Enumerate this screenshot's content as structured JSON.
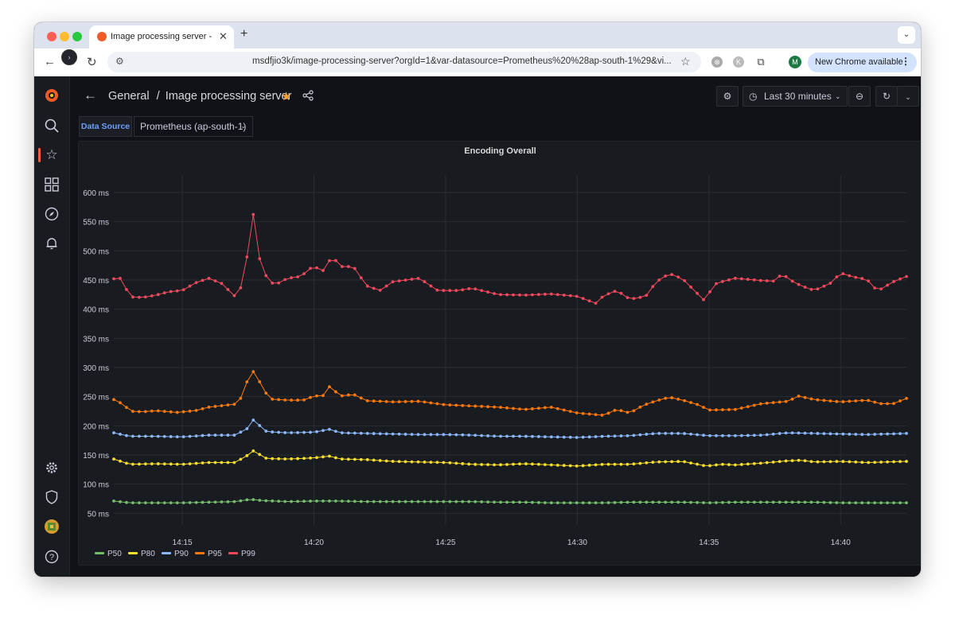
{
  "browser": {
    "tab_title": "Image processing server - Da",
    "url": "msdfjio3k/image-processing-server?orgId=1&var-datasource=Prometheus%20%28ap-south-1%29&vi...",
    "update_label": "New Chrome available",
    "profile_initial": "M",
    "extension_initial": "K"
  },
  "dashboard": {
    "breadcrumb_folder": "General",
    "breadcrumb_sep": "/",
    "title": "Image processing server",
    "time_range": "Last 30 minutes"
  },
  "variables": {
    "datasource_label": "Data Source",
    "datasource_value": "Prometheus (ap-south-1)"
  },
  "panel": {
    "title": "Encoding Overall"
  },
  "colors": {
    "P50": "#73bf69",
    "P80": "#fade2a",
    "P90": "#8ab8ff",
    "P95": "#ff780a",
    "P99": "#f2495c",
    "accent": "#f55f3e"
  },
  "chart_data": {
    "type": "line",
    "title": "Encoding Overall",
    "xlabel": "",
    "ylabel": "",
    "x_ticks": [
      "14:15",
      "14:20",
      "14:25",
      "14:30",
      "14:35",
      "14:40"
    ],
    "x_tick_minutes": [
      15,
      20,
      25,
      30,
      35,
      40
    ],
    "x_range_minutes": [
      12.4,
      42.5
    ],
    "y_ticks": [
      "50 ms",
      "100 ms",
      "150 ms",
      "200 ms",
      "250 ms",
      "300 ms",
      "350 ms",
      "400 ms",
      "450 ms",
      "500 ms",
      "550 ms",
      "600 ms"
    ],
    "y_tick_values": [
      50,
      100,
      150,
      200,
      250,
      300,
      350,
      400,
      450,
      500,
      550,
      600
    ],
    "ylim": [
      30,
      630
    ],
    "grid": true,
    "legend_position": "bottom-left",
    "series": [
      {
        "name": "P50",
        "knots": [
          [
            12.4,
            71
          ],
          [
            13,
            68
          ],
          [
            14,
            68
          ],
          [
            15,
            68
          ],
          [
            16,
            69
          ],
          [
            17,
            70
          ],
          [
            17.6,
            74
          ],
          [
            18,
            72
          ],
          [
            19,
            70
          ],
          [
            20,
            71
          ],
          [
            21,
            71
          ],
          [
            22,
            70
          ],
          [
            23,
            70
          ],
          [
            24,
            70
          ],
          [
            25,
            70
          ],
          [
            26,
            70
          ],
          [
            27,
            69
          ],
          [
            28,
            69
          ],
          [
            29,
            68
          ],
          [
            30,
            68
          ],
          [
            31,
            68
          ],
          [
            32,
            69
          ],
          [
            33,
            69
          ],
          [
            34,
            69
          ],
          [
            35,
            68
          ],
          [
            36,
            69
          ],
          [
            37,
            69
          ],
          [
            38,
            69
          ],
          [
            39,
            69
          ],
          [
            40,
            68
          ],
          [
            41,
            68
          ],
          [
            42.5,
            68
          ]
        ]
      },
      {
        "name": "P80",
        "knots": [
          [
            12.4,
            143
          ],
          [
            13,
            134
          ],
          [
            14,
            135
          ],
          [
            15,
            134
          ],
          [
            16,
            137
          ],
          [
            17,
            137
          ],
          [
            17.5,
            150
          ],
          [
            17.7,
            157
          ],
          [
            18.2,
            144
          ],
          [
            19,
            143
          ],
          [
            20,
            145
          ],
          [
            20.6,
            148
          ],
          [
            21,
            143
          ],
          [
            22,
            142
          ],
          [
            23,
            139
          ],
          [
            24,
            138
          ],
          [
            25,
            137
          ],
          [
            26,
            134
          ],
          [
            27,
            133
          ],
          [
            28,
            135
          ],
          [
            29,
            133
          ],
          [
            30,
            131
          ],
          [
            31,
            134
          ],
          [
            32,
            134
          ],
          [
            33,
            138
          ],
          [
            34,
            139
          ],
          [
            34.9,
            131
          ],
          [
            35.5,
            134
          ],
          [
            36,
            133
          ],
          [
            37,
            136
          ],
          [
            38,
            140
          ],
          [
            38.5,
            141
          ],
          [
            39,
            138
          ],
          [
            40,
            139
          ],
          [
            41,
            137
          ],
          [
            42.5,
            139
          ]
        ]
      },
      {
        "name": "P90",
        "knots": [
          [
            12.4,
            188
          ],
          [
            13,
            182
          ],
          [
            14,
            182
          ],
          [
            15,
            181
          ],
          [
            16,
            184
          ],
          [
            17,
            184
          ],
          [
            17.5,
            196
          ],
          [
            17.7,
            210
          ],
          [
            18.2,
            190
          ],
          [
            19,
            188
          ],
          [
            20,
            189
          ],
          [
            20.6,
            194
          ],
          [
            21,
            188
          ],
          [
            22,
            187
          ],
          [
            23,
            186
          ],
          [
            24,
            185
          ],
          [
            25,
            185
          ],
          [
            26,
            184
          ],
          [
            27,
            182
          ],
          [
            28,
            182
          ],
          [
            29,
            181
          ],
          [
            30,
            180
          ],
          [
            31,
            182
          ],
          [
            32,
            183
          ],
          [
            33,
            187
          ],
          [
            34,
            187
          ],
          [
            35,
            183
          ],
          [
            36,
            183
          ],
          [
            37,
            184
          ],
          [
            38,
            188
          ],
          [
            39,
            187
          ],
          [
            40,
            186
          ],
          [
            41,
            185
          ],
          [
            42.5,
            187
          ]
        ]
      },
      {
        "name": "P95",
        "knots": [
          [
            12.4,
            245
          ],
          [
            12.8,
            236
          ],
          [
            13,
            225
          ],
          [
            13.5,
            224
          ],
          [
            14,
            226
          ],
          [
            14.8,
            223
          ],
          [
            15.5,
            226
          ],
          [
            16,
            232
          ],
          [
            17,
            237
          ],
          [
            17.3,
            251
          ],
          [
            17.5,
            282
          ],
          [
            17.7,
            293
          ],
          [
            18,
            271
          ],
          [
            18.3,
            246
          ],
          [
            19,
            244
          ],
          [
            19.6,
            244
          ],
          [
            20,
            251
          ],
          [
            20.4,
            252
          ],
          [
            20.6,
            268
          ],
          [
            21,
            251
          ],
          [
            21.5,
            254
          ],
          [
            22,
            243
          ],
          [
            23,
            241
          ],
          [
            24,
            242
          ],
          [
            25,
            236
          ],
          [
            26,
            234
          ],
          [
            27,
            232
          ],
          [
            28,
            228
          ],
          [
            29,
            232
          ],
          [
            30,
            222
          ],
          [
            31,
            218
          ],
          [
            31.5,
            228
          ],
          [
            32,
            222
          ],
          [
            32.5,
            235
          ],
          [
            33,
            243
          ],
          [
            33.5,
            249
          ],
          [
            34,
            244
          ],
          [
            34.6,
            236
          ],
          [
            35,
            227
          ],
          [
            36,
            228
          ],
          [
            37,
            238
          ],
          [
            38,
            242
          ],
          [
            38.4,
            251
          ],
          [
            39,
            245
          ],
          [
            40,
            241
          ],
          [
            41,
            244
          ],
          [
            41.5,
            238
          ],
          [
            42,
            238
          ],
          [
            42.5,
            247
          ]
        ]
      },
      {
        "name": "P99",
        "knots": [
          [
            12.4,
            452
          ],
          [
            12.7,
            453
          ],
          [
            13,
            421
          ],
          [
            13.5,
            420
          ],
          [
            14,
            424
          ],
          [
            14.5,
            430
          ],
          [
            15,
            432
          ],
          [
            15.5,
            445
          ],
          [
            16,
            453
          ],
          [
            16.5,
            444
          ],
          [
            17,
            422
          ],
          [
            17.2,
            433
          ],
          [
            17.5,
            499
          ],
          [
            17.7,
            563
          ],
          [
            17.9,
            491
          ],
          [
            18.2,
            455
          ],
          [
            18.5,
            441
          ],
          [
            19,
            453
          ],
          [
            19.5,
            456
          ],
          [
            20,
            475
          ],
          [
            20.3,
            463
          ],
          [
            20.7,
            491
          ],
          [
            21,
            473
          ],
          [
            21.5,
            473
          ],
          [
            22,
            440
          ],
          [
            22.5,
            432
          ],
          [
            23,
            447
          ],
          [
            24,
            453
          ],
          [
            24.7,
            432
          ],
          [
            25.5,
            432
          ],
          [
            26,
            436
          ],
          [
            27,
            425
          ],
          [
            28,
            424
          ],
          [
            29,
            426
          ],
          [
            30,
            422
          ],
          [
            30.7,
            410
          ],
          [
            31,
            423
          ],
          [
            31.5,
            432
          ],
          [
            32,
            417
          ],
          [
            32.6,
            422
          ],
          [
            33,
            447
          ],
          [
            33.5,
            461
          ],
          [
            34,
            452
          ],
          [
            34.8,
            416
          ],
          [
            35.3,
            445
          ],
          [
            36,
            453
          ],
          [
            37,
            449
          ],
          [
            37.5,
            448
          ],
          [
            37.8,
            462
          ],
          [
            38,
            452
          ],
          [
            38.5,
            440
          ],
          [
            39,
            432
          ],
          [
            39.6,
            444
          ],
          [
            40,
            462
          ],
          [
            40.5,
            455
          ],
          [
            41,
            451
          ],
          [
            41.4,
            431
          ],
          [
            42,
            447
          ],
          [
            42.5,
            456
          ]
        ]
      }
    ]
  }
}
